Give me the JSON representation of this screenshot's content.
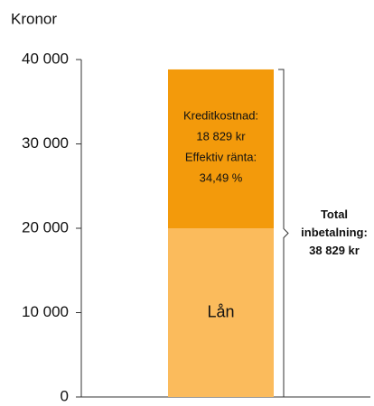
{
  "chart_data": {
    "type": "stacked-bar",
    "ylabel": "Kronor",
    "categories": [
      null
    ],
    "series": [
      {
        "name": "Lån",
        "color": "#fbbb5c",
        "values": [
          20000
        ]
      },
      {
        "name": "Kreditkostnad:",
        "color": "#f39a0b",
        "values": [
          18829
        ],
        "value_labels": [
          "18 829 kr"
        ]
      }
    ],
    "effective_rate": {
      "label": "Effektiv ränta:",
      "value_label": "34,49 %"
    },
    "total": {
      "label": [
        "Total",
        "inbetalning:"
      ],
      "value": 38829,
      "value_label": "38 829 kr"
    },
    "ylim": [
      0,
      40000
    ],
    "yticks": [
      0,
      {
        "value": 10000,
        "label": "10 000"
      },
      {
        "value": 20000,
        "label": "20 000"
      },
      {
        "value": 30000,
        "label": "30 000"
      },
      {
        "value": 40000,
        "label": "40 000"
      }
    ]
  }
}
